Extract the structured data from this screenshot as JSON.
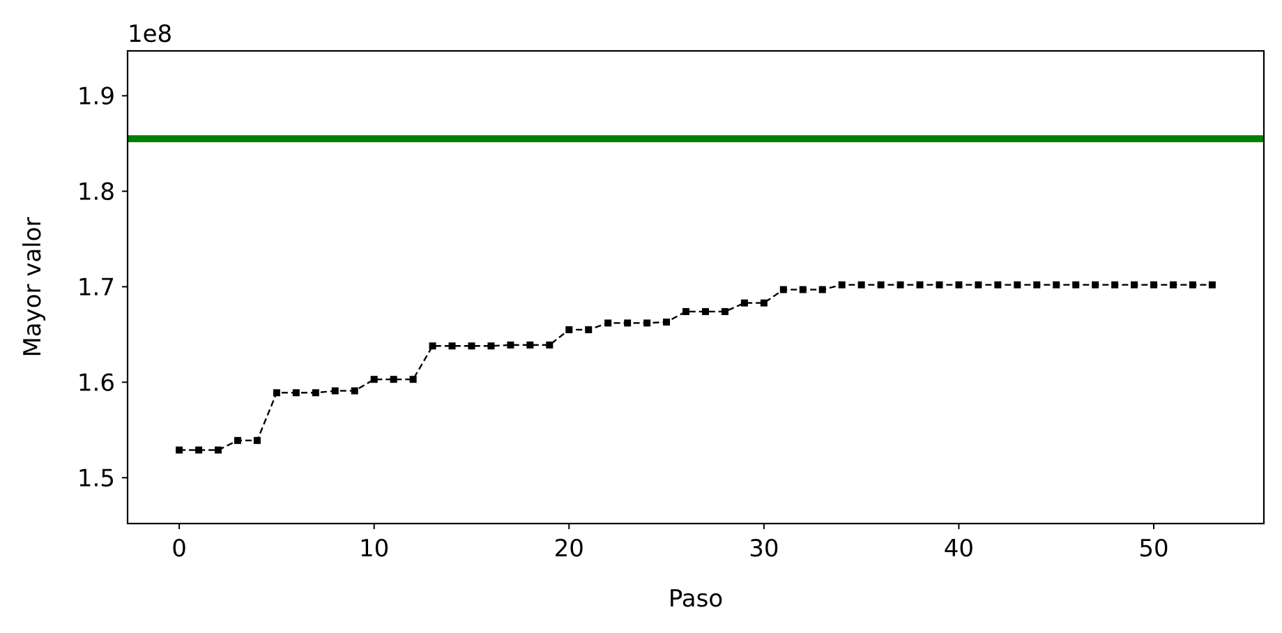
{
  "chart_data": {
    "type": "line",
    "title": "",
    "xlabel": "Paso",
    "ylabel": "Mayor valor",
    "offset_label": "1e8",
    "y_multiplier": 100000000,
    "xlim": [
      -2.65,
      55.65
    ],
    "ylim": [
      1.452,
      1.947
    ],
    "x_ticks": [
      0,
      10,
      20,
      30,
      40,
      50
    ],
    "y_ticks": [
      1.5,
      1.6,
      1.7,
      1.8,
      1.9
    ],
    "x_tick_labels": [
      "0",
      "10",
      "20",
      "30",
      "40",
      "50"
    ],
    "y_tick_labels": [
      "1.5",
      "1.6",
      "1.7",
      "1.8",
      "1.9"
    ],
    "grid": false,
    "series": [
      {
        "style": "dashed-line-square-markers",
        "color": "#000000",
        "x": [
          0,
          1,
          2,
          3,
          4,
          5,
          6,
          7,
          8,
          9,
          10,
          11,
          12,
          13,
          14,
          15,
          16,
          17,
          18,
          19,
          20,
          21,
          22,
          23,
          24,
          25,
          26,
          27,
          28,
          29,
          30,
          31,
          32,
          33,
          34,
          35,
          36,
          37,
          38,
          39,
          40,
          41,
          42,
          43,
          44,
          45,
          46,
          47,
          48,
          49,
          50,
          51,
          52,
          53
        ],
        "values": [
          1.529,
          1.529,
          1.529,
          1.539,
          1.539,
          1.589,
          1.589,
          1.589,
          1.591,
          1.591,
          1.603,
          1.603,
          1.603,
          1.638,
          1.638,
          1.638,
          1.638,
          1.639,
          1.639,
          1.639,
          1.655,
          1.655,
          1.662,
          1.662,
          1.662,
          1.663,
          1.674,
          1.674,
          1.674,
          1.683,
          1.683,
          1.697,
          1.697,
          1.697,
          1.702,
          1.702,
          1.702,
          1.702,
          1.702,
          1.702,
          1.702,
          1.702,
          1.702,
          1.702,
          1.702,
          1.702,
          1.702,
          1.702,
          1.702,
          1.702,
          1.702,
          1.702,
          1.702,
          1.702
        ]
      },
      {
        "style": "horizontal-reference-line",
        "color": "#008000",
        "value": 1.855
      }
    ]
  }
}
